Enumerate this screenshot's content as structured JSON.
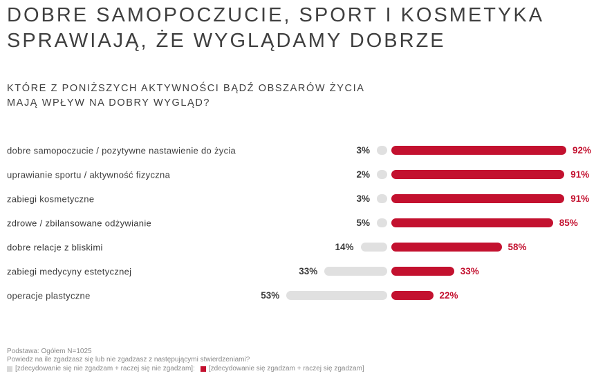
{
  "header": {
    "title_lines": [
      "DOBRE SAMOPOCZUCIE, SPORT I KOSMETYKA",
      "SPRAWIAJĄ, ŻE WYGLĄDAMY DOBRZE"
    ],
    "question_lines": [
      "KTÓRE Z PONIŻSZYCH AKTYWNOŚCI BĄDŹ OBSZARÓW ŻYCIA",
      "MAJĄ WPŁYW NA DOBRY WYGLĄD?"
    ]
  },
  "chart_data": {
    "type": "bar",
    "variant": "diverging-horizontal",
    "unit": "%",
    "categories": [
      "dobre samopoczucie / pozytywne nastawienie do życia",
      "uprawianie sportu / aktywność fizyczna",
      "zabiegi kosmetyczne",
      "zdrowe / zbilansowane odżywianie",
      "dobre relacje z bliskimi",
      "zabiegi medycyny estetycznej",
      "operacje plastyczne"
    ],
    "series": [
      {
        "name": "[zdecydowanie się nie zgadzam + raczej się nie zgadzam]",
        "color": "#e0e0e0",
        "values": [
          3,
          2,
          3,
          5,
          14,
          33,
          53
        ]
      },
      {
        "name": "[zdecydowanie się zgadzam + raczej się zgadzam]",
        "color": "#c3112f",
        "values": [
          92,
          91,
          91,
          85,
          58,
          33,
          22
        ]
      }
    ],
    "rows": [
      {
        "label": "dobre samopoczucie / pozytywne nastawienie do życia",
        "disagree": 3,
        "agree": 92,
        "disagree_label": "3%",
        "agree_label": "92%"
      },
      {
        "label": "uprawianie sportu / aktywność fizyczna",
        "disagree": 2,
        "agree": 91,
        "disagree_label": "2%",
        "agree_label": "91%"
      },
      {
        "label": "zabiegi kosmetyczne",
        "disagree": 3,
        "agree": 91,
        "disagree_label": "3%",
        "agree_label": "91%"
      },
      {
        "label": "zdrowe / zbilansowane odżywianie",
        "disagree": 5,
        "agree": 85,
        "disagree_label": "5%",
        "agree_label": "85%"
      },
      {
        "label": "dobre relacje z bliskimi",
        "disagree": 14,
        "agree": 58,
        "disagree_label": "14%",
        "agree_label": "58%"
      },
      {
        "label": "zabiegi medycyny estetycznej",
        "disagree": 33,
        "agree": 33,
        "disagree_label": "33%",
        "agree_label": "33%"
      },
      {
        "label": "operacje plastyczne",
        "disagree": 53,
        "agree": 22,
        "disagree_label": "53%",
        "agree_label": "22%"
      }
    ]
  },
  "footer": {
    "basis": "Podstawa: Ogółem N=1025",
    "question": "Powiedz na ile zgadzasz się lub nie zgadzasz z następującymi stwierdzeniami?",
    "legend": [
      {
        "label": "[zdecydowanie się nie zgadzam + raczej się nie zgadzam]:",
        "color": "#d9d9d9"
      },
      {
        "label": "[zdecydowanie się zgadzam + raczej się zgadzam]",
        "color": "#c3112f"
      }
    ]
  }
}
